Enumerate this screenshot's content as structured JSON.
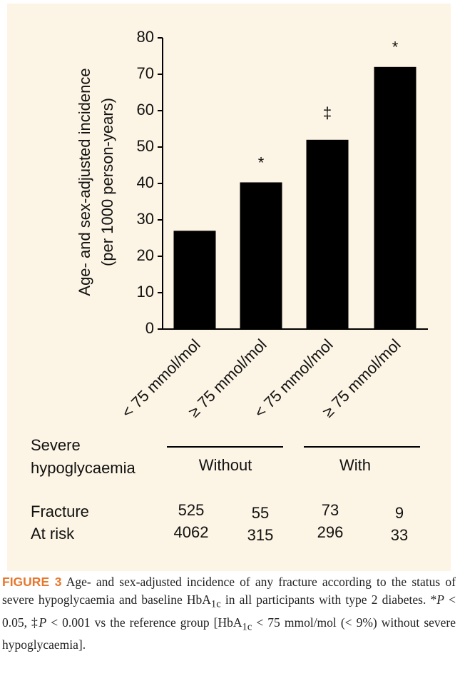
{
  "chart_data": {
    "type": "bar",
    "ylabel": [
      "Age- and sex-adjusted incidence",
      "(per 1000 person-years)"
    ],
    "categories": [
      "< 75 mmol/mol",
      "≥ 75 mmol/mol",
      "< 75 mmol/mol",
      "≥ 75 mmol/mol"
    ],
    "values": [
      27,
      40.3,
      52,
      72
    ],
    "annotations": [
      null,
      "*",
      "‡",
      "*"
    ],
    "color": "#000000",
    "ylim": [
      0,
      80
    ],
    "yticks": [
      0,
      10,
      20,
      30,
      40,
      50,
      60,
      70,
      80
    ]
  },
  "table": {
    "group_header": [
      "Severe",
      "hypoglycaemia"
    ],
    "groups": [
      "Without",
      "With"
    ],
    "rows": [
      {
        "label": "Fracture",
        "values": [
          525,
          55,
          73,
          9
        ]
      },
      {
        "label": "At risk",
        "values": [
          4062,
          315,
          296,
          33
        ]
      }
    ]
  },
  "caption": {
    "label": "FIGURE 3",
    "text": [
      "Age- and sex-adjusted incidence of any fracture according to the status of severe hypoglycaemia and baseline HbA",
      "1c",
      " in all participants with type 2 diabetes. *",
      "P",
      " < 0.05, ‡",
      "P",
      " < 0.001 vs the reference group [HbA",
      "1c",
      " < 75 mmol/mol (< 9%) without severe hypoglycaemia]."
    ]
  }
}
